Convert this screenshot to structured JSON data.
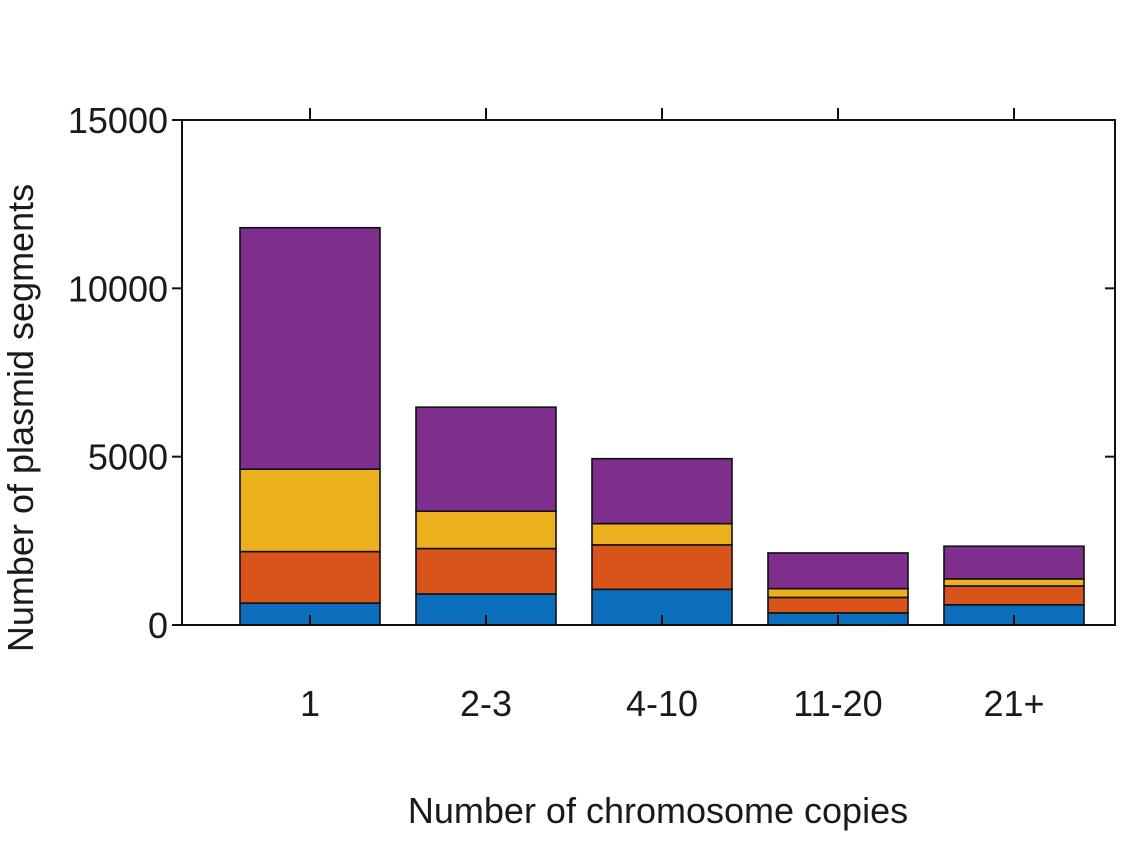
{
  "chart_data": {
    "type": "bar",
    "stacked": true,
    "title": "",
    "xlabel": "Number of chromosome copies",
    "ylabel": "Number of plasmid segments",
    "categories": [
      "1",
      "2-3",
      "4-10",
      "11-20",
      "21+"
    ],
    "ylim": [
      0,
      15000
    ],
    "yticks": [
      0,
      5000,
      10000,
      15000
    ],
    "y_tick_labels": [
      "0",
      "5000",
      "10000",
      "15000"
    ],
    "grid": false,
    "legend": "none",
    "series": [
      {
        "color": "#0A6EBD",
        "values": [
          650,
          920,
          1060,
          360,
          600
        ]
      },
      {
        "color": "#D9541A",
        "values": [
          1530,
          1350,
          1320,
          460,
          560
        ]
      },
      {
        "color": "#EDB120",
        "values": [
          2450,
          1110,
          630,
          260,
          210
        ]
      },
      {
        "color": "#7E2F8E",
        "values": [
          7170,
          3090,
          1930,
          1060,
          970
        ]
      }
    ]
  }
}
